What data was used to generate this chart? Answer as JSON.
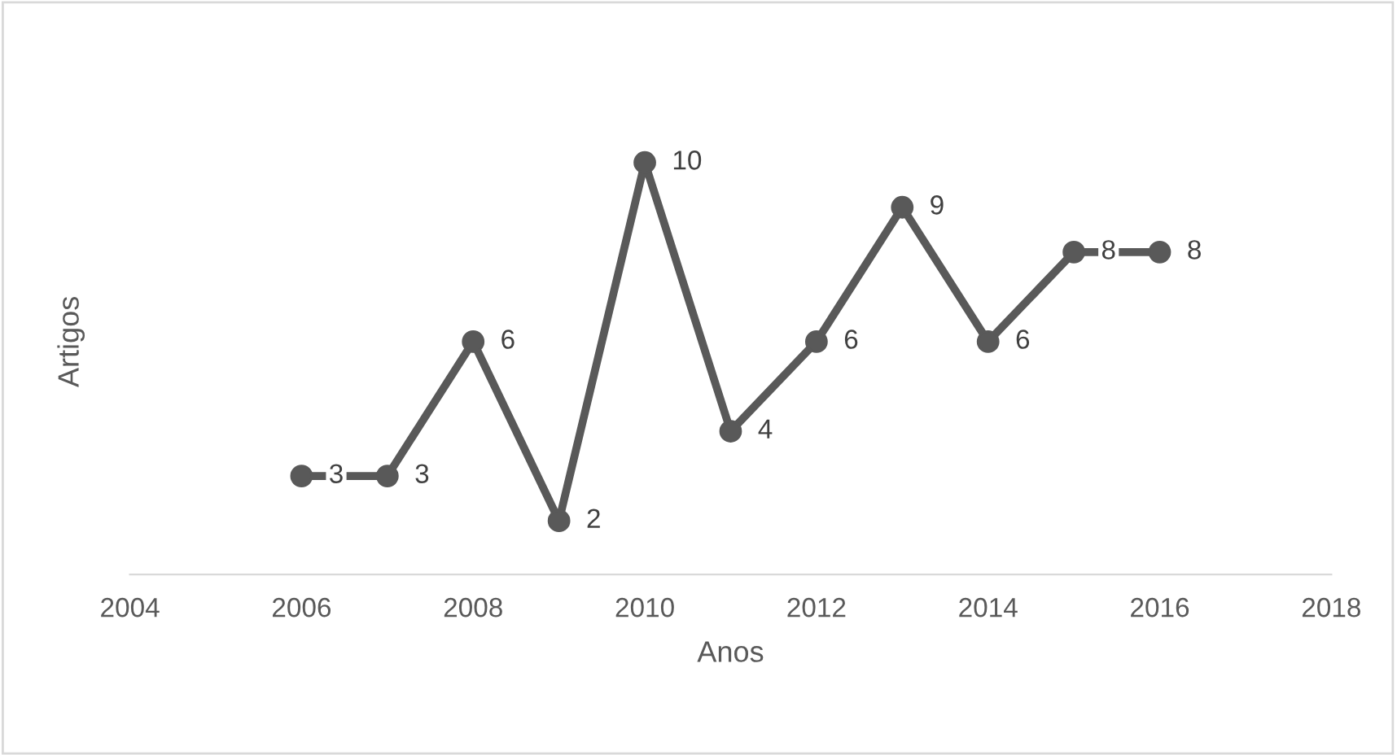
{
  "chart_data": {
    "type": "line",
    "xlabel": "Anos",
    "ylabel": "Artigos",
    "x": [
      2006,
      2007,
      2008,
      2009,
      2010,
      2011,
      2012,
      2013,
      2014,
      2015,
      2016
    ],
    "series": [
      {
        "color": "#595959",
        "values": [
          3,
          3,
          6,
          2,
          10,
          4,
          6,
          9,
          6,
          8,
          8
        ]
      }
    ],
    "xlim": [
      2004,
      2018
    ],
    "xticks": [
      2004,
      2006,
      2008,
      2010,
      2012,
      2014,
      2016,
      2018
    ],
    "tick_labels": "x",
    "data_labels": true,
    "marker": "circle",
    "line_style": "solid",
    "grid": false,
    "legend": false
  }
}
